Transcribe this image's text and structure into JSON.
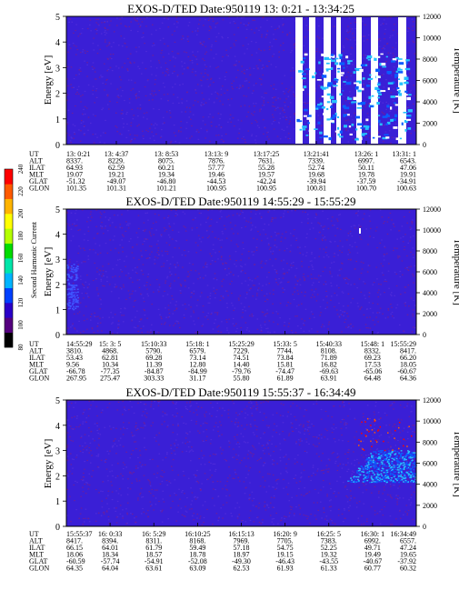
{
  "chart_data": [
    {
      "type": "heatmap",
      "title": "EXOS-D/TED   Date:950119  13: 0:21 - 13:34:25",
      "ylabel": "Energy [eV]",
      "ylabel_right": "Temperature [K]",
      "ylim": [
        0,
        5
      ],
      "ylim_right": [
        0,
        12000
      ],
      "yticks": [
        "0",
        "1",
        "2",
        "3",
        "4",
        "5"
      ],
      "yticks_right": [
        "0",
        "2000",
        "4000",
        "6000",
        "8000",
        "10000",
        "12000"
      ],
      "row_labels": [
        "UT",
        "ALT",
        "ILAT",
        "MLT",
        "GLAT",
        "GLON"
      ],
      "columns": [
        [
          "13: 0:21",
          "8337.",
          "64.93",
          "19.07",
          "-51.32",
          "101.35"
        ],
        [
          "13: 4:37",
          "8229.",
          "62.59",
          "19.21",
          "-49.07",
          "101.31"
        ],
        [
          "13: 8:53",
          "8075.",
          "60.21",
          "19.34",
          "-46.80",
          "101.21"
        ],
        [
          "13:13: 9",
          "7876.",
          "57.77",
          "19.46",
          "-44.53",
          "100.95"
        ],
        [
          "13:17:25",
          "7631.",
          "55.28",
          "19.57",
          "-42.24",
          "100.95"
        ],
        [
          "13:21:41",
          "7339.",
          "52.74",
          "19.68",
          "-39.94",
          "100.81"
        ],
        [
          "13:26: 1",
          "6997.",
          "50.11",
          "19.78",
          "-37.59",
          "100.70"
        ],
        [
          "13:31: 1",
          "6543.",
          "47.06",
          "19.91",
          "-34.91",
          "100.63"
        ]
      ]
    },
    {
      "type": "heatmap",
      "title": "EXOS-D/TED   Date:950119  14:55:29 - 15:55:29",
      "ylabel": "Energy [eV]",
      "ylabel_right": "Temperature [K]",
      "ylim": [
        0,
        5
      ],
      "ylim_right": [
        0,
        12000
      ],
      "yticks": [
        "0",
        "1",
        "2",
        "3",
        "4",
        "5"
      ],
      "yticks_right": [
        "0",
        "2000",
        "4000",
        "6000",
        "8000",
        "10000",
        "12000"
      ],
      "row_labels": [
        "UT",
        "ALT",
        "ILAT",
        "MLT",
        "GLAT",
        "GLON"
      ],
      "columns": [
        [
          "14:55:29",
          "3810.",
          "53.43",
          "9.56",
          "-66.78",
          "267.95"
        ],
        [
          "15: 3: 5",
          "4868.",
          "62.81",
          "10.34",
          "-77.35",
          "275.47"
        ],
        [
          "15:10:33",
          "5790.",
          "69.28",
          "11.39",
          "-84.87",
          "303.33"
        ],
        [
          "15:18: 1",
          "6579.",
          "73.14",
          "12.80",
          "-84.99",
          "31.17"
        ],
        [
          "15:25:29",
          "7229.",
          "74.51",
          "14.40",
          "-79.76",
          "55.80"
        ],
        [
          "15:33: 5",
          "7744.",
          "73.84",
          "15.81",
          "-74.47",
          "61.89"
        ],
        [
          "15:40:33",
          "8108.",
          "71.89",
          "16.82",
          "-69.63",
          "63.91"
        ],
        [
          "15:48: 1",
          "8332.",
          "69.23",
          "17.53",
          "-65.06",
          "64.48"
        ],
        [
          "15:55:29",
          "8417.",
          "66.20",
          "18.05",
          "-60.67",
          "64.36"
        ]
      ]
    },
    {
      "type": "heatmap",
      "title": "EXOS-D/TED   Date:950119  15:55:37 - 16:34:49",
      "ylabel": "Energy [eV]",
      "ylabel_right": "Temperature [K]",
      "ylim": [
        0,
        5
      ],
      "ylim_right": [
        0,
        12000
      ],
      "yticks": [
        "0",
        "1",
        "2",
        "3",
        "4",
        "5"
      ],
      "yticks_right": [
        "0",
        "2000",
        "4000",
        "6000",
        "8000",
        "10000",
        "12000"
      ],
      "row_labels": [
        "UT",
        "ALT",
        "ILAT",
        "MLT",
        "GLAT",
        "GLON"
      ],
      "columns": [
        [
          "15:55:37",
          "8417.",
          "66.15",
          "18.06",
          "-60.59",
          "64.35"
        ],
        [
          "16: 0:33",
          "8394.",
          "64.01",
          "18.34",
          "-57.74",
          "64.04"
        ],
        [
          "16: 5:29",
          "8311.",
          "61.79",
          "18.57",
          "-54.91",
          "63.61"
        ],
        [
          "16:10:25",
          "8168.",
          "59.49",
          "18.78",
          "-52.08",
          "63.09"
        ],
        [
          "16:15:13",
          "7969.",
          "57.18",
          "18.97",
          "-49.30",
          "62.53"
        ],
        [
          "16:20: 9",
          "7705.",
          "54.75",
          "19.15",
          "-46.43",
          "61.93"
        ],
        [
          "16:25: 5",
          "7383.",
          "52.25",
          "19.32",
          "-43.55",
          "61.33"
        ],
        [
          "16:30: 1",
          "6992.",
          "49.71",
          "19.49",
          "-40.67",
          "60.77"
        ],
        [
          "16:34:49",
          "6557.",
          "47.24",
          "19.65",
          "-37.92",
          "60.32"
        ]
      ]
    }
  ],
  "colorbar": {
    "label": "Second Harmonic Current",
    "ticks": [
      "80",
      "100",
      "120",
      "140",
      "160",
      "180",
      "200",
      "220",
      "240"
    ],
    "colors": [
      "#000000",
      "#55007f",
      "#2a00c8",
      "#0040ff",
      "#00b4ff",
      "#00e6aa",
      "#00dc00",
      "#b4ff00",
      "#ffff00",
      "#ffb400",
      "#ff5a00",
      "#ff0000"
    ]
  },
  "colors": {
    "background_field": "#3a1fd6",
    "noise_dot": "#6a1f9f",
    "event_cyan": "#25c0ff",
    "event_blue": "#0a5cff",
    "gap_white": "#ffffff"
  }
}
